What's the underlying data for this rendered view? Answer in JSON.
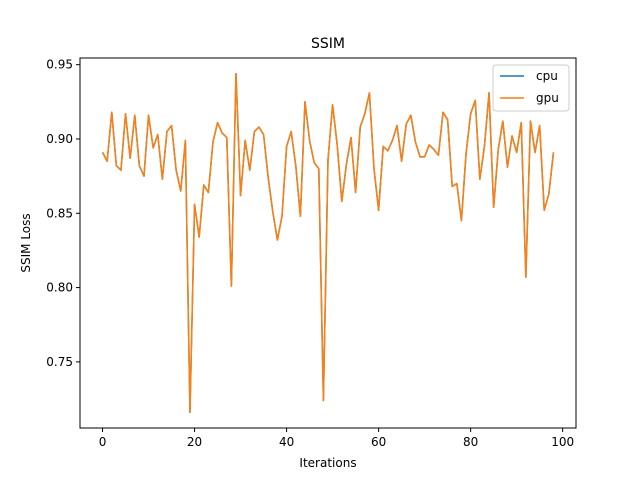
{
  "chart_data": {
    "type": "line",
    "title": "SSIM",
    "xlabel": "Iterations",
    "ylabel": "SSIM Loss",
    "xlim": [
      -4.9,
      102.9
    ],
    "ylim": [
      0.7055,
      0.9545
    ],
    "xticks": [
      0,
      20,
      40,
      60,
      80,
      100
    ],
    "yticks": [
      0.75,
      0.8,
      0.85,
      0.9,
      0.95
    ],
    "ytick_labels": [
      "0.75",
      "0.80",
      "0.85",
      "0.90",
      "0.95"
    ],
    "grid": false,
    "legend_position": "top-right",
    "series": [
      {
        "name": "cpu",
        "color": "#1f77b4",
        "values": [
          0.891,
          0.885,
          0.918,
          0.882,
          0.879,
          0.917,
          0.887,
          0.916,
          0.882,
          0.875,
          0.916,
          0.894,
          0.903,
          0.873,
          0.905,
          0.909,
          0.879,
          0.865,
          0.899,
          0.716,
          0.856,
          0.834,
          0.869,
          0.864,
          0.898,
          0.911,
          0.904,
          0.901,
          0.801,
          0.944,
          0.862,
          0.899,
          0.879,
          0.905,
          0.908,
          0.903,
          0.874,
          0.851,
          0.832,
          0.848,
          0.895,
          0.905,
          0.882,
          0.848,
          0.925,
          0.899,
          0.884,
          0.88,
          0.724,
          0.886,
          0.923,
          0.896,
          0.858,
          0.883,
          0.901,
          0.864,
          0.908,
          0.917,
          0.931,
          0.88,
          0.852,
          0.895,
          0.892,
          0.899,
          0.909,
          0.885,
          0.91,
          0.916,
          0.898,
          0.888,
          0.888,
          0.896,
          0.893,
          0.889,
          0.918,
          0.913,
          0.868,
          0.87,
          0.845,
          0.89,
          0.917,
          0.926,
          0.873,
          0.895,
          0.931,
          0.854,
          0.893,
          0.912,
          0.881,
          0.902,
          0.891,
          0.911,
          0.807,
          0.912,
          0.891,
          0.909,
          0.852,
          0.863,
          0.891
        ]
      },
      {
        "name": "gpu",
        "color": "#ff7f0e",
        "values": [
          0.891,
          0.885,
          0.918,
          0.882,
          0.879,
          0.917,
          0.887,
          0.916,
          0.882,
          0.875,
          0.916,
          0.894,
          0.903,
          0.873,
          0.905,
          0.909,
          0.879,
          0.865,
          0.899,
          0.716,
          0.856,
          0.834,
          0.869,
          0.864,
          0.898,
          0.911,
          0.904,
          0.901,
          0.801,
          0.944,
          0.862,
          0.899,
          0.879,
          0.905,
          0.908,
          0.903,
          0.874,
          0.851,
          0.832,
          0.848,
          0.895,
          0.905,
          0.882,
          0.848,
          0.925,
          0.899,
          0.884,
          0.88,
          0.724,
          0.886,
          0.923,
          0.896,
          0.858,
          0.883,
          0.901,
          0.864,
          0.908,
          0.917,
          0.931,
          0.88,
          0.852,
          0.895,
          0.892,
          0.899,
          0.909,
          0.885,
          0.91,
          0.916,
          0.898,
          0.888,
          0.888,
          0.896,
          0.893,
          0.889,
          0.918,
          0.913,
          0.868,
          0.87,
          0.845,
          0.89,
          0.917,
          0.926,
          0.873,
          0.895,
          0.931,
          0.854,
          0.893,
          0.912,
          0.881,
          0.902,
          0.891,
          0.911,
          0.807,
          0.912,
          0.891,
          0.909,
          0.852,
          0.863,
          0.891
        ]
      }
    ]
  }
}
